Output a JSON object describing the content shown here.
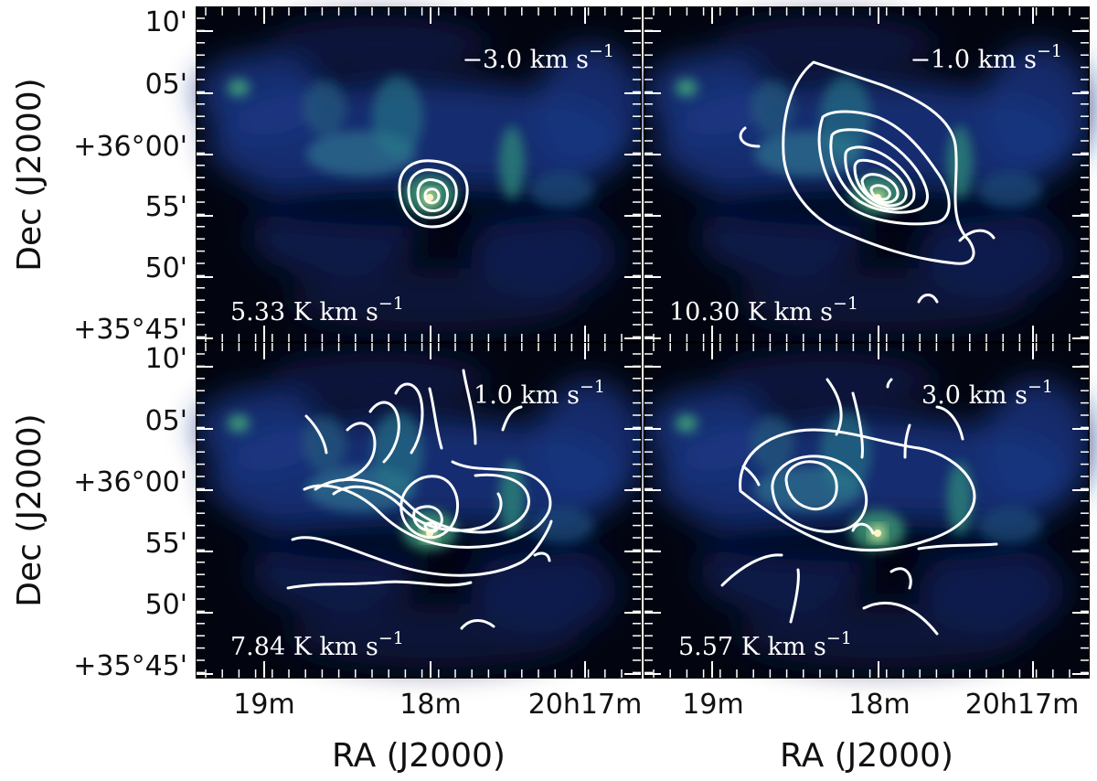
{
  "chart_data": {
    "type": "heatmap",
    "ylabel": "Dec (J2000)",
    "xlabel": "RA (J2000)",
    "y_tick_labels_top_row": [
      "10'",
      "05'",
      "+36°00'",
      "55'",
      "50'",
      "+35°45'"
    ],
    "y_tick_labels_bottom_row": [
      "10'",
      "05'",
      "+36°00'",
      "55'",
      "50'",
      "+35°45'"
    ],
    "x_tick_labels_left_col": [
      "19m",
      "18m",
      "20h17m"
    ],
    "x_tick_labels_right_col": [
      "19m",
      "18m",
      "20h17m"
    ],
    "colormap": "dark blue-green-yellow (integrated intensity background)",
    "contour_color": "#ffffff",
    "panels": [
      {
        "velocity_label": "−3.0 km s",
        "velocity_exp": "−1",
        "velocity_kms": -3.0,
        "contour_label": "5.33 K km s",
        "contour_exp": "−1",
        "contour_step_K_kms": 5.33
      },
      {
        "velocity_label": "−1.0 km s",
        "velocity_exp": "−1",
        "velocity_kms": -1.0,
        "contour_label": "10.30 K km s",
        "contour_exp": "−1",
        "contour_step_K_kms": 10.3
      },
      {
        "velocity_label": "1.0 km s",
        "velocity_exp": "−1",
        "velocity_kms": 1.0,
        "contour_label": "7.84 K km s",
        "contour_exp": "−1",
        "contour_step_K_kms": 7.84
      },
      {
        "velocity_label": "3.0 km s",
        "velocity_exp": "−1",
        "velocity_kms": 3.0,
        "contour_label": "5.57 K km s",
        "contour_exp": "−1",
        "contour_step_K_kms": 5.57
      }
    ]
  }
}
